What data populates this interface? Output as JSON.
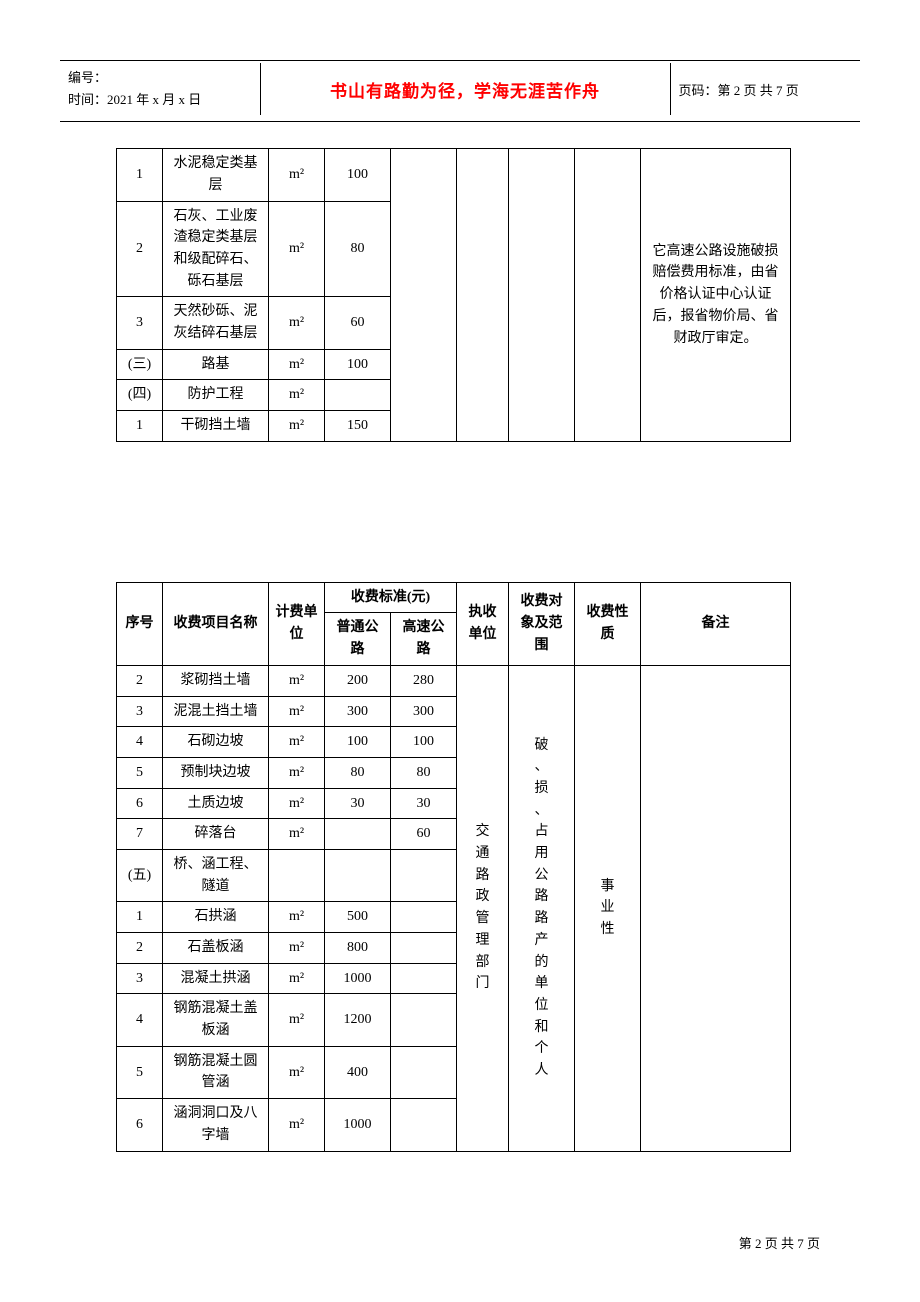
{
  "header": {
    "id_label": "编号：",
    "time_label": "时间：2021 年 x 月 x 日",
    "motto": "书山有路勤为径，学海无涯苦作舟",
    "page_label": "页码：第 2 页 共 7 页"
  },
  "table1": {
    "note": "它高速公路设施破损赔偿费用标准，由省价格认证中心认证后，报省物价局、省财政厅审定。",
    "rows": [
      {
        "idx": "1",
        "name": "水泥稳定类基层",
        "unit": "m²",
        "p1": "100"
      },
      {
        "idx": "2",
        "name": "石灰、工业废渣稳定类基层和级配碎石、砾石基层",
        "unit": "m²",
        "p1": "80"
      },
      {
        "idx": "3",
        "name": "天然砂砾、泥灰结碎石基层",
        "unit": "m²",
        "p1": "60"
      },
      {
        "idx": "(三)",
        "name": "路基",
        "unit": "m²",
        "p1": "100"
      },
      {
        "idx": "(四)",
        "name": "防护工程",
        "unit": "m²",
        "p1": ""
      },
      {
        "idx": "1",
        "name": "干砌挡土墙",
        "unit": "m²",
        "p1": "150"
      }
    ]
  },
  "table2": {
    "head": {
      "idx": "序号",
      "name": "收费项目名称",
      "unit": "计费单位",
      "std": "收费标准(元)",
      "p1": "普通公路",
      "p2": "高速公路",
      "dept": "执收单位",
      "scope": "收费对象及范围",
      "nature": "收费性质",
      "note": "备注"
    },
    "dept_text": "交通路政管理部门",
    "scope_text": "破、损、占用公路路产的单位和个人",
    "nature_text": "事业性",
    "rows": [
      {
        "idx": "2",
        "name": "浆砌挡土墙",
        "unit": "m²",
        "p1": "200",
        "p2": "280"
      },
      {
        "idx": "3",
        "name": "泥混土挡土墙",
        "unit": "m²",
        "p1": "300",
        "p2": "300"
      },
      {
        "idx": "4",
        "name": "石砌边坡",
        "unit": "m²",
        "p1": "100",
        "p2": "100"
      },
      {
        "idx": "5",
        "name": "预制块边坡",
        "unit": "m²",
        "p1": "80",
        "p2": "80"
      },
      {
        "idx": "6",
        "name": "土质边坡",
        "unit": "m²",
        "p1": "30",
        "p2": "30"
      },
      {
        "idx": "7",
        "name": "碎落台",
        "unit": "m²",
        "p1": "",
        "p2": "60"
      },
      {
        "idx": "(五)",
        "name": "桥、涵工程、隧道",
        "unit": "",
        "p1": "",
        "p2": ""
      },
      {
        "idx": "1",
        "name": "石拱涵",
        "unit": "m²",
        "p1": "500",
        "p2": ""
      },
      {
        "idx": "2",
        "name": "石盖板涵",
        "unit": "m²",
        "p1": "800",
        "p2": ""
      },
      {
        "idx": "3",
        "name": "混凝土拱涵",
        "unit": "m²",
        "p1": "1000",
        "p2": ""
      },
      {
        "idx": "4",
        "name": "钢筋混凝土盖板涵",
        "unit": "m²",
        "p1": "1200",
        "p2": ""
      },
      {
        "idx": "5",
        "name": "钢筋混凝土圆管涵",
        "unit": "m²",
        "p1": "400",
        "p2": ""
      },
      {
        "idx": "6",
        "name": "涵洞洞口及八字墙",
        "unit": "m²",
        "p1": "1000",
        "p2": ""
      }
    ]
  },
  "footer": "第 2 页 共 7 页"
}
